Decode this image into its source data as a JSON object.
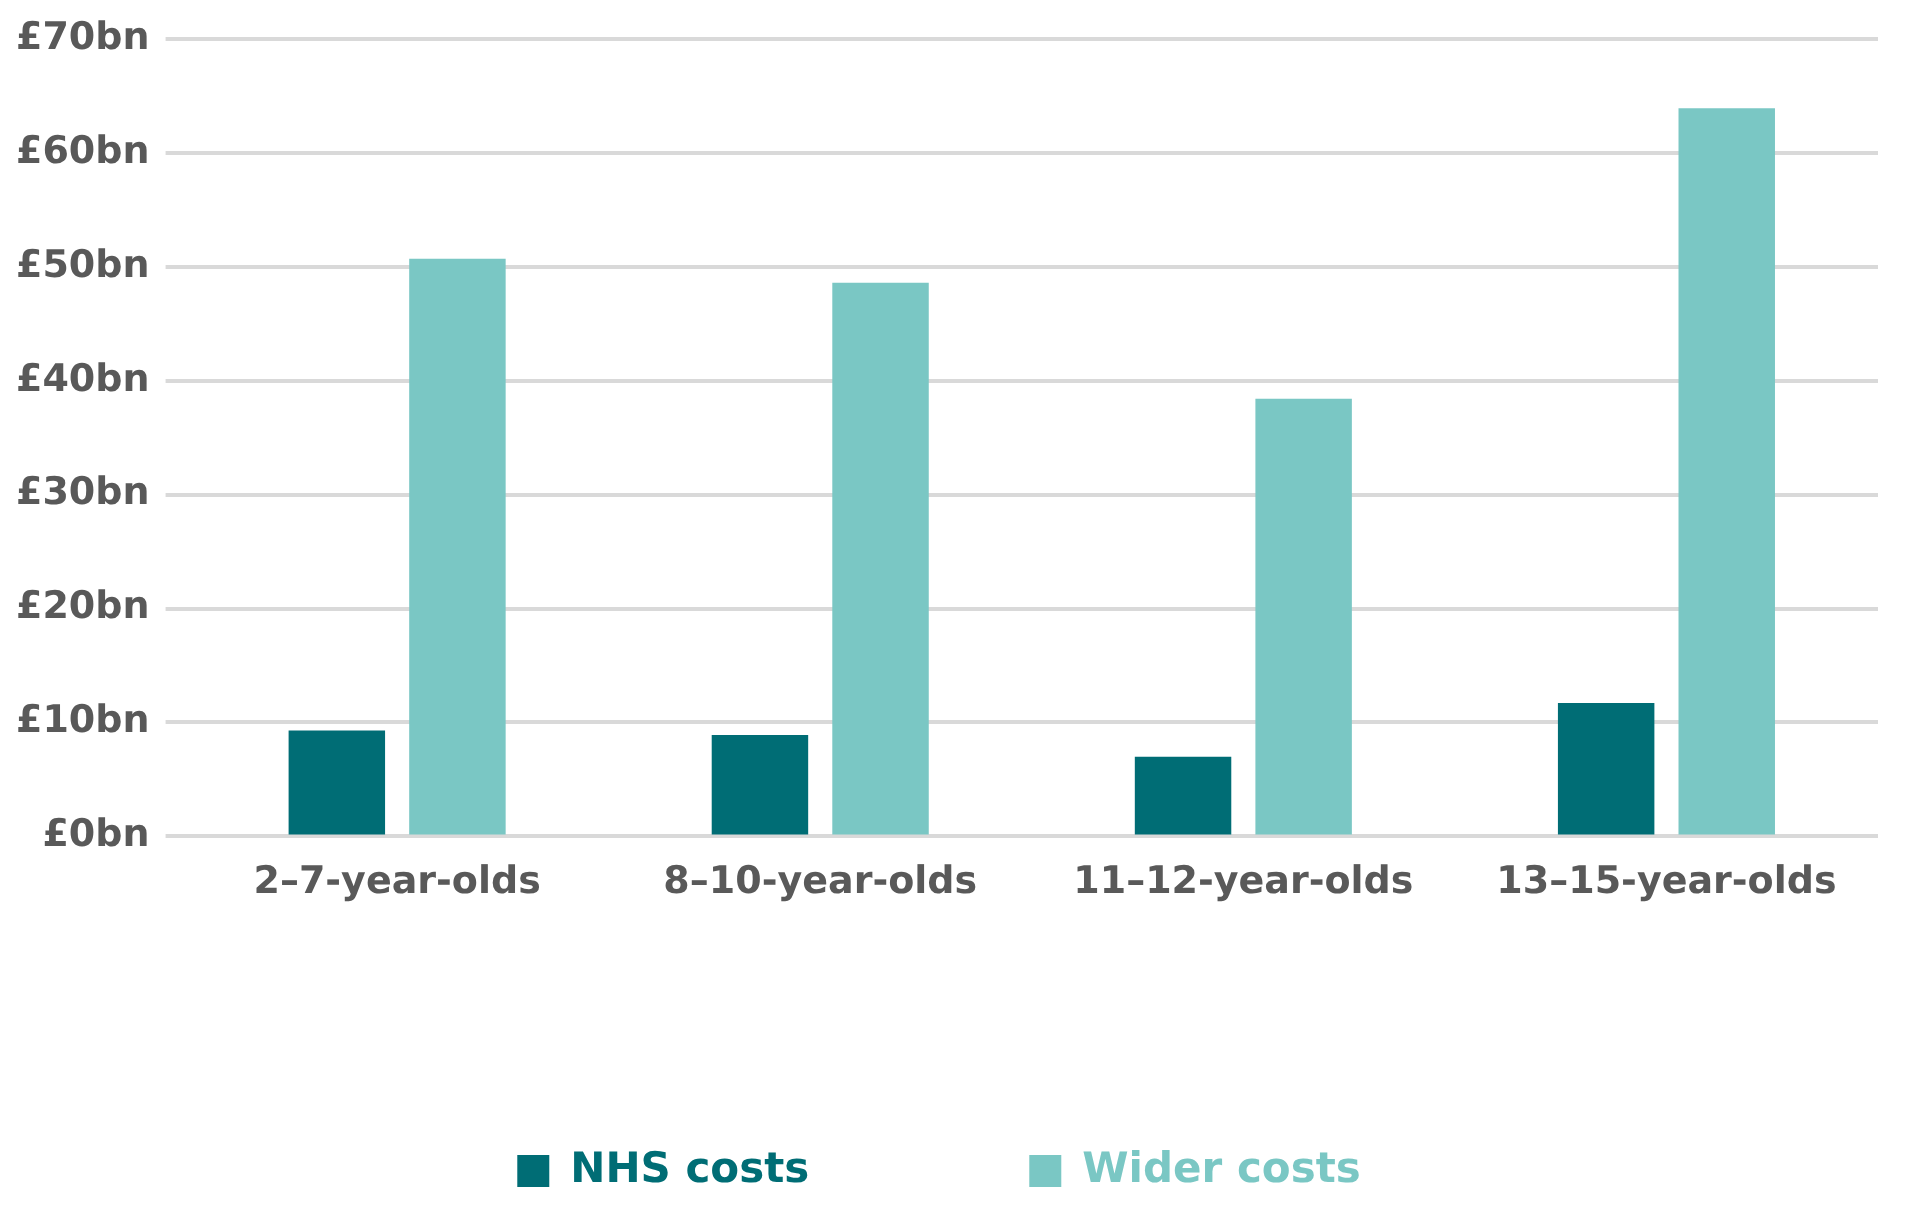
{
  "chart_data": {
    "type": "bar",
    "categories": [
      "2–7-year-olds",
      "8–10-year-olds",
      "11–12-year-olds",
      "13–15-year-olds"
    ],
    "series": [
      {
        "name": "NHS costs",
        "color": "#006d75",
        "values": [
          9.3,
          8.9,
          7.0,
          11.7
        ]
      },
      {
        "name": "Wider costs",
        "color": "#7ac7c4",
        "values": [
          50.7,
          48.6,
          38.4,
          63.9
        ]
      }
    ],
    "ylim": [
      0,
      70
    ],
    "yticks": [
      {
        "value": 0,
        "label": "£0bn"
      },
      {
        "value": 10,
        "label": "£10bn"
      },
      {
        "value": 20,
        "label": "£20bn"
      },
      {
        "value": 30,
        "label": "£30bn"
      },
      {
        "value": 40,
        "label": "£40bn"
      },
      {
        "value": 50,
        "label": "£50bn"
      },
      {
        "value": 60,
        "label": "£60bn"
      },
      {
        "value": 70,
        "label": "£70bn"
      }
    ],
    "grid": "y",
    "legend": "bottom"
  }
}
